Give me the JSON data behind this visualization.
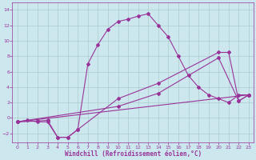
{
  "xlabel": "Windchill (Refroidissement éolien,°C)",
  "bg_color": "#cce8ee",
  "grid_color": "#aacccc",
  "line_color": "#993399",
  "xlim": [
    -0.5,
    23.5
  ],
  "ylim": [
    -3.2,
    15.0
  ],
  "yticks": [
    -2,
    0,
    2,
    4,
    6,
    8,
    10,
    12,
    14
  ],
  "xticks": [
    0,
    1,
    2,
    3,
    4,
    5,
    6,
    7,
    8,
    9,
    10,
    11,
    12,
    13,
    14,
    15,
    16,
    17,
    18,
    19,
    20,
    21,
    22,
    23
  ],
  "line1_x": [
    0,
    1,
    2,
    3,
    4,
    5,
    6,
    7,
    8,
    9,
    10,
    11,
    12,
    13,
    14,
    15,
    16,
    17,
    18,
    19,
    20,
    21,
    22,
    23
  ],
  "line1_y": [
    -0.5,
    -0.3,
    -0.5,
    -0.5,
    -2.5,
    -2.5,
    -1.5,
    7.0,
    9.5,
    11.5,
    12.5,
    12.8,
    13.2,
    13.5,
    12.0,
    10.5,
    8.0,
    5.5,
    4.0,
    3.0,
    2.5,
    2.0,
    3.0,
    3.0
  ],
  "line2_x": [
    0,
    2,
    3,
    4,
    5,
    6,
    10,
    14,
    20,
    21,
    22,
    23
  ],
  "line2_y": [
    -0.5,
    -0.4,
    -0.3,
    -2.5,
    -2.5,
    -1.5,
    2.5,
    4.5,
    8.5,
    8.5,
    2.2,
    3.0
  ],
  "line3_x": [
    0,
    23
  ],
  "line3_y": [
    -0.5,
    3.0
  ],
  "line4_x": [
    0,
    10,
    14,
    20,
    22,
    23
  ],
  "line4_y": [
    -0.5,
    1.5,
    3.2,
    7.8,
    2.2,
    3.0
  ]
}
